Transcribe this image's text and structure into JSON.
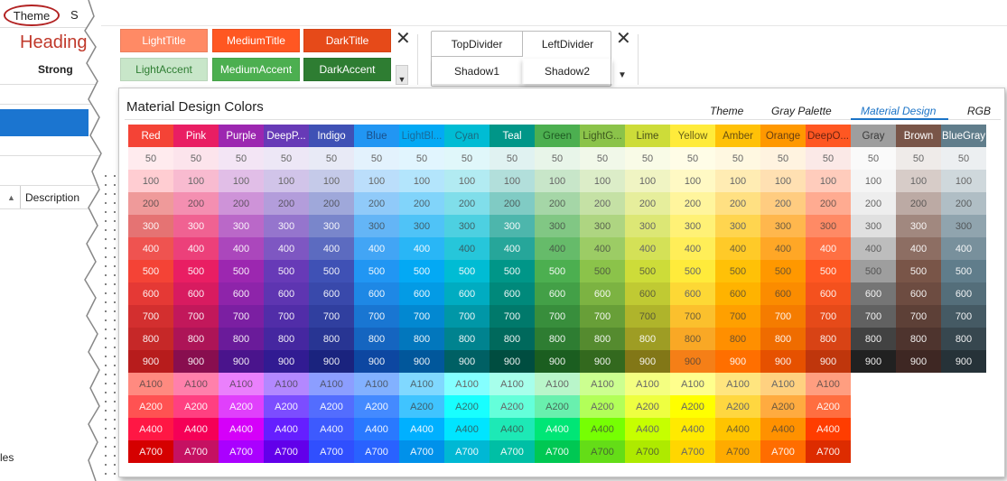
{
  "background_app": {
    "tab_theme": "Theme",
    "tab_partial": "S",
    "heading": "Heading",
    "strong": "Strong",
    "column_description": "Description",
    "partial_text": "les"
  },
  "ribbon": {
    "title_accent_tiles": [
      {
        "label": "LightTitle",
        "bg": "#ff8a65",
        "fg": "#ffffff"
      },
      {
        "label": "MediumTitle",
        "bg": "#ff5722",
        "fg": "#ffffff"
      },
      {
        "label": "DarkTitle",
        "bg": "#e64a19",
        "fg": "#ffffff"
      },
      {
        "label": "LightAccent",
        "bg": "#c8e6c9",
        "fg": "#2e7d32"
      },
      {
        "label": "MediumAccent",
        "bg": "#4caf50",
        "fg": "#ffffff"
      },
      {
        "label": "DarkAccent",
        "bg": "#2e7d32",
        "fg": "#ffffff"
      }
    ],
    "dividers": [
      "TopDivider",
      "LeftDivider",
      "Shadow1",
      "Shadow2"
    ],
    "close_glyph": "✕",
    "dropdown_glyph": "▼"
  },
  "popup": {
    "title": "Material Design Colors",
    "tabs": [
      {
        "label": "Theme",
        "active": false
      },
      {
        "label": "Gray Palette",
        "active": false
      },
      {
        "label": "Material Design",
        "active": true
      },
      {
        "label": "RGB",
        "active": false
      }
    ],
    "shade_labels": [
      "50",
      "100",
      "200",
      "300",
      "400",
      "500",
      "600",
      "700",
      "800",
      "900",
      "A100",
      "A200",
      "A400",
      "A700"
    ],
    "colors": [
      {
        "name": "Red",
        "header_bg": "#f44336",
        "header_fg": "#ffffff",
        "shades": [
          "#ffebee",
          "#ffcdd2",
          "#ef9a9a",
          "#e57373",
          "#ef5350",
          "#f44336",
          "#e53935",
          "#d32f2f",
          "#c62828",
          "#b71c1c",
          "#ff8a80",
          "#ff5252",
          "#ff1744",
          "#d50000"
        ]
      },
      {
        "name": "Pink",
        "header_bg": "#e91e63",
        "header_fg": "#ffffff",
        "shades": [
          "#fce4ec",
          "#f8bbd0",
          "#f48fb1",
          "#f06292",
          "#ec407a",
          "#e91e63",
          "#d81b60",
          "#c2185b",
          "#ad1457",
          "#880e4f",
          "#ff80ab",
          "#ff4081",
          "#f50057",
          "#c51162"
        ]
      },
      {
        "name": "Purple",
        "header_bg": "#9c27b0",
        "header_fg": "#ffffff",
        "shades": [
          "#f3e5f5",
          "#e1bee7",
          "#ce93d8",
          "#ba68c8",
          "#ab47bc",
          "#9c27b0",
          "#8e24aa",
          "#7b1fa2",
          "#6a1b9a",
          "#4a148c",
          "#ea80fc",
          "#e040fb",
          "#d500f9",
          "#aa00ff"
        ]
      },
      {
        "name": "DeepP...",
        "header_bg": "#673ab7",
        "header_fg": "#ffffff",
        "shades": [
          "#ede7f6",
          "#d1c4e9",
          "#b39ddb",
          "#9575cd",
          "#7e57c2",
          "#673ab7",
          "#5e35b1",
          "#512da8",
          "#4527a0",
          "#311b92",
          "#b388ff",
          "#7c4dff",
          "#651fff",
          "#6200ea"
        ]
      },
      {
        "name": "Indigo",
        "header_bg": "#3f51b5",
        "header_fg": "#ffffff",
        "shades": [
          "#e8eaf6",
          "#c5cae9",
          "#9fa8da",
          "#7986cb",
          "#5c6bc0",
          "#3f51b5",
          "#3949ab",
          "#303f9f",
          "#283593",
          "#1a237e",
          "#8c9eff",
          "#536dfe",
          "#3d5afe",
          "#304ffe"
        ]
      },
      {
        "name": "Blue",
        "header_bg": "#2196f3",
        "header_fg": "#1a4f8a",
        "shades": [
          "#e3f2fd",
          "#bbdefb",
          "#90caf9",
          "#64b5f6",
          "#42a5f5",
          "#2196f3",
          "#1e88e5",
          "#1976d2",
          "#1565c0",
          "#0d47a1",
          "#82b1ff",
          "#448aff",
          "#2979ff",
          "#2962ff"
        ]
      },
      {
        "name": "LightBl...",
        "header_bg": "#03a9f4",
        "header_fg": "#1a6a9a",
        "shades": [
          "#e1f5fe",
          "#b3e5fc",
          "#81d4fa",
          "#4fc3f7",
          "#29b6f6",
          "#03a9f4",
          "#039be5",
          "#0288d1",
          "#0277bd",
          "#01579b",
          "#80d8ff",
          "#40c4ff",
          "#00b0ff",
          "#0091ea"
        ]
      },
      {
        "name": "Cyan",
        "header_bg": "#00bcd4",
        "header_fg": "#1a6a80",
        "shades": [
          "#e0f7fa",
          "#b2ebf2",
          "#80deea",
          "#4dd0e1",
          "#26c6da",
          "#00bcd4",
          "#00acc1",
          "#0097a7",
          "#00838f",
          "#006064",
          "#84ffff",
          "#18ffff",
          "#00e5ff",
          "#00b8d4"
        ]
      },
      {
        "name": "Teal",
        "header_bg": "#009688",
        "header_fg": "#ffffff",
        "shades": [
          "#e0f2f1",
          "#b2dfdb",
          "#80cbc4",
          "#4db6ac",
          "#26a69a",
          "#009688",
          "#00897b",
          "#00796b",
          "#00695c",
          "#004d40",
          "#a7ffeb",
          "#64ffda",
          "#1de9b6",
          "#00bfa5"
        ]
      },
      {
        "name": "Green",
        "header_bg": "#4caf50",
        "header_fg": "#1e5a22",
        "shades": [
          "#e8f5e9",
          "#c8e6c9",
          "#a5d6a7",
          "#81c784",
          "#66bb6a",
          "#4caf50",
          "#43a047",
          "#388e3c",
          "#2e7d32",
          "#1b5e20",
          "#b9f6ca",
          "#69f0ae",
          "#00e676",
          "#00c853"
        ]
      },
      {
        "name": "LightG...",
        "header_bg": "#8bc34a",
        "header_fg": "#3e5a1e",
        "shades": [
          "#f1f8e9",
          "#dcedc8",
          "#c5e1a5",
          "#aed581",
          "#9ccc65",
          "#8bc34a",
          "#7cb342",
          "#689f38",
          "#558b2f",
          "#33691e",
          "#ccff90",
          "#b2ff59",
          "#76ff03",
          "#64dd17"
        ]
      },
      {
        "name": "Lime",
        "header_bg": "#cddc39",
        "header_fg": "#4a5218",
        "shades": [
          "#f9fbe7",
          "#f0f4c3",
          "#e6ee9c",
          "#dce775",
          "#d4e157",
          "#cddc39",
          "#c0ca33",
          "#afb42b",
          "#9e9d24",
          "#827717",
          "#f4ff81",
          "#eeff41",
          "#c6ff00",
          "#aeea00"
        ]
      },
      {
        "name": "Yellow",
        "header_bg": "#ffeb3b",
        "header_fg": "#6a6418",
        "shades": [
          "#fffde7",
          "#fff9c4",
          "#fff59d",
          "#fff176",
          "#ffee58",
          "#ffeb3b",
          "#fdd835",
          "#fbc02d",
          "#f9a825",
          "#f57f17",
          "#ffff8d",
          "#ffff00",
          "#ffea00",
          "#ffd600"
        ]
      },
      {
        "name": "Amber",
        "header_bg": "#ffc107",
        "header_fg": "#6a5010",
        "shades": [
          "#fff8e1",
          "#ffecb3",
          "#ffe082",
          "#ffd54f",
          "#ffca28",
          "#ffc107",
          "#ffb300",
          "#ffa000",
          "#ff8f00",
          "#ff6f00",
          "#ffe57f",
          "#ffd740",
          "#ffc400",
          "#ffab00"
        ]
      },
      {
        "name": "Orange",
        "header_bg": "#ff9800",
        "header_fg": "#6a4010",
        "shades": [
          "#fff3e0",
          "#ffe0b2",
          "#ffcc80",
          "#ffb74d",
          "#ffa726",
          "#ff9800",
          "#fb8c00",
          "#f57c00",
          "#ef6c00",
          "#e65100",
          "#ffd180",
          "#ffab40",
          "#ff9100",
          "#ff6d00"
        ]
      },
      {
        "name": "DeepO...",
        "header_bg": "#ff5722",
        "header_fg": "#6a2410",
        "shades": [
          "#fbe9e7",
          "#ffccbc",
          "#ffab91",
          "#ff8a65",
          "#ff7043",
          "#ff5722",
          "#f4511e",
          "#e64a19",
          "#d84315",
          "#bf360c",
          "#ff9e80",
          "#ff6e40",
          "#ff3d00",
          "#dd2c00"
        ]
      },
      {
        "name": "Gray",
        "header_bg": "#9e9e9e",
        "header_fg": "#3a3a3a",
        "shades": [
          "#fafafa",
          "#f5f5f5",
          "#eeeeee",
          "#e0e0e0",
          "#bdbdbd",
          "#9e9e9e",
          "#757575",
          "#616161",
          "#424242",
          "#212121"
        ]
      },
      {
        "name": "Brown",
        "header_bg": "#795548",
        "header_fg": "#ffffff",
        "shades": [
          "#efebe9",
          "#d7ccc8",
          "#bcaaa4",
          "#a1887f",
          "#8d6e63",
          "#795548",
          "#6d4c41",
          "#5d4037",
          "#4e342e",
          "#3e2723"
        ]
      },
      {
        "name": "BlueGray",
        "header_bg": "#607d8b",
        "header_fg": "#ffffff",
        "shades": [
          "#eceff1",
          "#cfd8dc",
          "#b0bec5",
          "#90a4ae",
          "#78909c",
          "#607d8b",
          "#546e7a",
          "#455a64",
          "#37474f",
          "#263238"
        ]
      }
    ]
  }
}
